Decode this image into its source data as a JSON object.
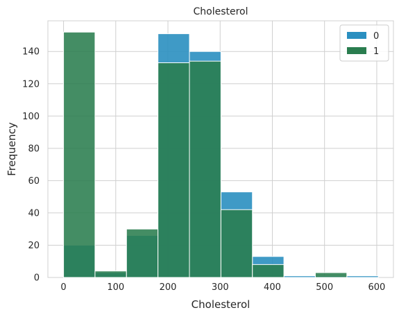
{
  "chart_data": {
    "type": "bar",
    "subtype": "histogram",
    "title": "Cholesterol",
    "xlabel": "Cholesterol",
    "ylabel": "Frequency",
    "xlim": [
      -30,
      632
    ],
    "ylim": [
      0,
      159
    ],
    "xticks": [
      0,
      100,
      200,
      300,
      400,
      500,
      600
    ],
    "yticks": [
      0,
      20,
      40,
      60,
      80,
      100,
      120,
      140
    ],
    "grid": true,
    "legend_position": "top-right",
    "series": [
      {
        "name": "0",
        "color": "#2a8fc0",
        "bin_edges": [
          0,
          60.3,
          120.6,
          180.9,
          241.2,
          301.5,
          361.8,
          422.1,
          482.4,
          542.7,
          603
        ],
        "values": [
          20,
          3,
          26,
          151,
          140,
          53,
          13,
          1,
          1,
          1
        ]
      },
      {
        "name": "1",
        "color": "#2a7d4f",
        "bin_edges": [
          0,
          60.3,
          120.6,
          180.9,
          241.2,
          301.5,
          361.8,
          422.1,
          482.4,
          542.7
        ],
        "values": [
          152,
          4,
          30,
          133,
          134,
          42,
          8,
          0,
          3
        ]
      }
    ]
  }
}
